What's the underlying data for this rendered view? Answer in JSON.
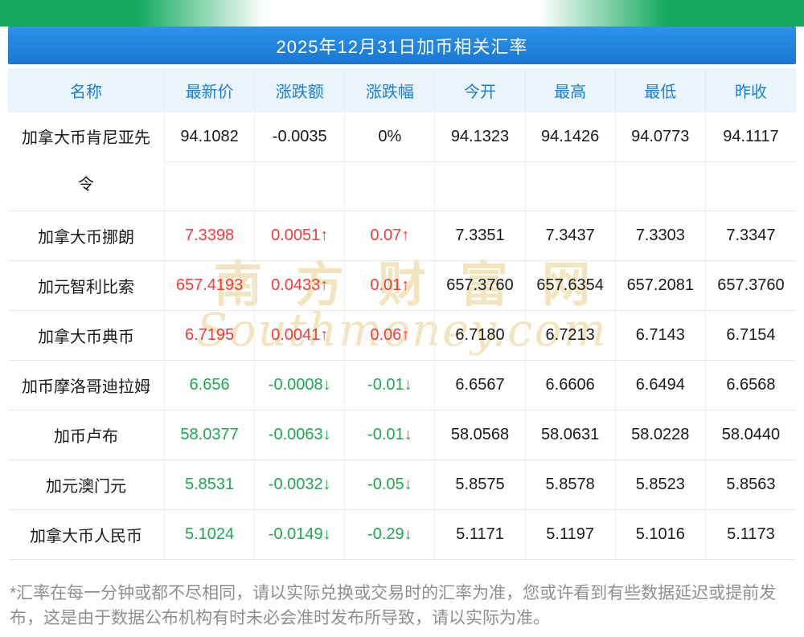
{
  "title_bar": {
    "title": "2025年12月31日加币相关汇率"
  },
  "chart_data": {
    "type": "table",
    "title": "2025年12月31日加币相关汇率",
    "columns": [
      "名称",
      "最新价",
      "涨跌额",
      "涨跌幅",
      "今开",
      "最高",
      "最低",
      "昨收"
    ],
    "rows": [
      {
        "name": "加拿大币肯尼亚先令",
        "latest": "94.1082",
        "change": "-0.0035",
        "change_pct": "0%",
        "open": "94.1323",
        "high": "94.1426",
        "low": "94.0773",
        "prev_close": "94.1117",
        "trend": "flat"
      },
      {
        "name": "加拿大币挪朗",
        "latest": "7.3398",
        "change": "0.0051↑",
        "change_pct": "0.07↑",
        "open": "7.3351",
        "high": "7.3437",
        "low": "7.3303",
        "prev_close": "7.3347",
        "trend": "up"
      },
      {
        "name": "加元智利比索",
        "latest": "657.4193",
        "change": "0.0433↑",
        "change_pct": "0.01↑",
        "open": "657.3760",
        "high": "657.6354",
        "low": "657.2081",
        "prev_close": "657.3760",
        "trend": "up"
      },
      {
        "name": "加拿大币典币",
        "latest": "6.7195",
        "change": "0.0041↑",
        "change_pct": "0.06↑",
        "open": "6.7180",
        "high": "6.7213",
        "low": "6.7143",
        "prev_close": "6.7154",
        "trend": "up"
      },
      {
        "name": "加币摩洛哥迪拉姆",
        "latest": "6.656",
        "change": "-0.0008↓",
        "change_pct": "-0.01↓",
        "open": "6.6567",
        "high": "6.6606",
        "low": "6.6494",
        "prev_close": "6.6568",
        "trend": "down"
      },
      {
        "name": "加币卢布",
        "latest": "58.0377",
        "change": "-0.0063↓",
        "change_pct": "-0.01↓",
        "open": "58.0568",
        "high": "58.0631",
        "low": "58.0228",
        "prev_close": "58.0440",
        "trend": "down"
      },
      {
        "name": "加元澳门元",
        "latest": "5.8531",
        "change": "-0.0032↓",
        "change_pct": "-0.05↓",
        "open": "5.8575",
        "high": "5.8578",
        "low": "5.8523",
        "prev_close": "5.8563",
        "trend": "down"
      },
      {
        "name": "加拿大币人民币",
        "latest": "5.1024",
        "change": "-0.0149↓",
        "change_pct": "-0.29↓",
        "open": "5.1171",
        "high": "5.1197",
        "low": "5.1016",
        "prev_close": "5.1173",
        "trend": "down"
      }
    ]
  },
  "watermark": {
    "cn": "南方财富网",
    "en": "Southmoney.com"
  },
  "footer": {
    "note": "*汇率在每一分钟或都不尽相同，请以实际兑换或交易时的汇率为准，您或许看到有些数据延迟或提前发布，这是由于数据公布机构有时未必会准时发布所导致，请以实际为准。"
  },
  "colors": {
    "top_strip_green": "#12a95d",
    "title_bar_blue": "#1e82dd",
    "header_row_bg": "#e9f4fd",
    "header_text_blue": "#1d80d8",
    "up_red": "#f33b3b",
    "down_green": "#1fa750",
    "watermark_cream": "#f0dfb2"
  }
}
